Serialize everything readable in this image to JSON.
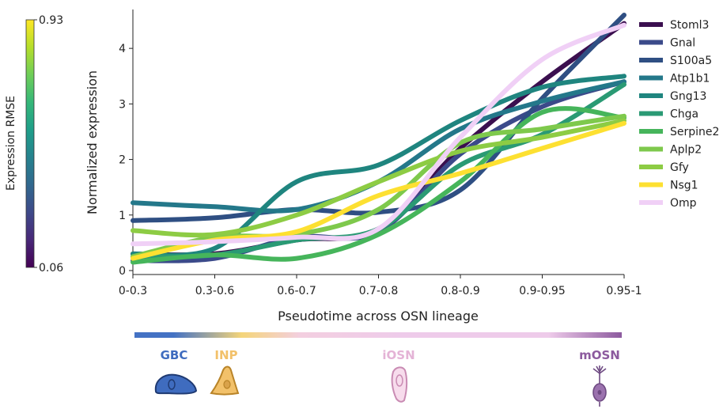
{
  "chart_data": {
    "type": "line",
    "title": "",
    "xlabel": "Pseudotime across OSN lineage",
    "ylabel": "Normalized expression",
    "categories": [
      "0-0.3",
      "0.3-0.6",
      "0.6-0.7",
      "0.7-0.8",
      "0.8-0.9",
      "0.9-0.95",
      "0.95-1"
    ],
    "ylim": [
      0,
      4.7
    ],
    "yticks": [
      0,
      1,
      2,
      3,
      4
    ],
    "grid": false,
    "legend_position": "right",
    "series": [
      {
        "name": "Stoml3",
        "color": "#3b0f4f",
        "values": [
          0.3,
          0.3,
          0.55,
          0.75,
          2.2,
          3.4,
          4.45
        ]
      },
      {
        "name": "Gnal",
        "color": "#3b4a8a",
        "values": [
          0.18,
          0.22,
          0.6,
          0.7,
          2.1,
          2.95,
          3.4
        ]
      },
      {
        "name": "S100a5",
        "color": "#2f4f83",
        "values": [
          0.9,
          0.95,
          1.1,
          1.05,
          1.45,
          3.1,
          4.6
        ]
      },
      {
        "name": "Atp1b1",
        "color": "#24788a",
        "values": [
          1.22,
          1.15,
          1.1,
          1.6,
          2.55,
          3.05,
          3.4
        ]
      },
      {
        "name": "Gng13",
        "color": "#1f857f",
        "values": [
          0.3,
          0.4,
          1.6,
          1.9,
          2.7,
          3.3,
          3.5
        ]
      },
      {
        "name": "Chga",
        "color": "#2a9a74",
        "values": [
          0.25,
          0.28,
          0.55,
          0.75,
          1.9,
          2.45,
          3.35
        ]
      },
      {
        "name": "Serpine2",
        "color": "#46b55b",
        "values": [
          0.15,
          0.28,
          0.22,
          0.65,
          1.6,
          2.85,
          2.75
        ]
      },
      {
        "name": "Aplp2",
        "color": "#7ec94c",
        "values": [
          0.25,
          0.6,
          0.65,
          1.1,
          2.3,
          2.55,
          2.78
        ]
      },
      {
        "name": "Gfy",
        "color": "#8dcc44",
        "values": [
          0.72,
          0.65,
          1.0,
          1.6,
          2.15,
          2.4,
          2.7
        ]
      },
      {
        "name": "Nsg1",
        "color": "#fde031",
        "values": [
          0.22,
          0.55,
          0.7,
          1.35,
          1.75,
          2.2,
          2.65
        ]
      },
      {
        "name": "Omp",
        "color": "#f0d0f6",
        "values": [
          0.48,
          0.52,
          0.6,
          0.75,
          2.4,
          3.8,
          4.42
        ]
      }
    ]
  },
  "colorbar": {
    "title": "Expression RMSE",
    "max_label": "0.93",
    "min_label": "0.06",
    "colors": [
      "#fde725",
      "#b5de2b",
      "#6ece58",
      "#35b779",
      "#1f9e89",
      "#26828e",
      "#31688e",
      "#3e4989",
      "#482878",
      "#440154"
    ]
  },
  "lineage": {
    "stages": [
      {
        "label": "GBC",
        "color": "#3f6cbf",
        "position": 0.0
      },
      {
        "label": "INP",
        "color": "#f2c16a",
        "position": 0.19
      },
      {
        "label": "iOSN",
        "color": "#e4b3d6",
        "position": 0.55
      },
      {
        "label": "mOSN",
        "color": "#8c5a9e",
        "position": 1.0
      }
    ],
    "bar_colors": [
      "#4472c4",
      "#4472c4",
      "#f4d57a",
      "#f3cfe0",
      "#eecbea",
      "#eecbea",
      "#8c5a9e"
    ]
  }
}
